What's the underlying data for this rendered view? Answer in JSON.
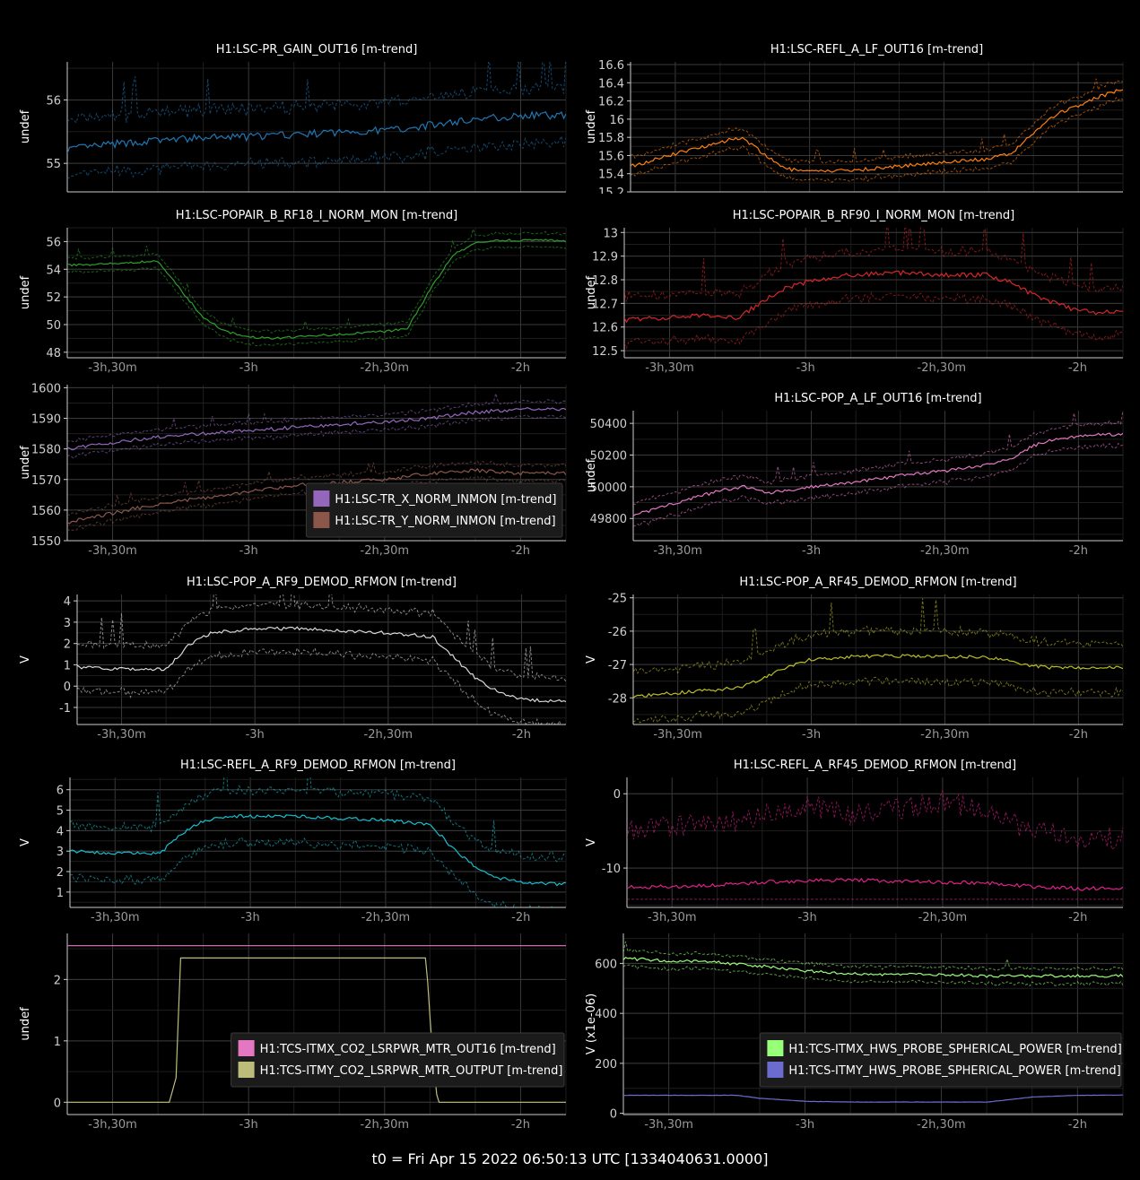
{
  "footer": "t0 = Fri Apr 15 2022 06:50:13 UTC [1334040631.0000]",
  "x_axis": {
    "xlim": [
      -13200,
      -6600
    ],
    "ticks": [
      -12600,
      -10800,
      -9000,
      -7200
    ],
    "tick_labels": [
      "-3h,30m",
      "-3h",
      "-2h,30m",
      "-2h"
    ]
  },
  "chart_data": [
    {
      "id": "pr-gain",
      "type": "line",
      "title": "H1:LSC-PR_GAIN_OUT16 [m-trend]",
      "ylabel": "undef",
      "ylim": [
        54.55,
        56.6
      ],
      "yticks": [
        55,
        56
      ],
      "color": "#1f77b4",
      "grid": true,
      "legend": null,
      "series": [
        {
          "name": "H1:LSC-PR_GAIN_OUT16 [m-trend]",
          "x": [
            -13200,
            -12600,
            -12000,
            -11400,
            -10800,
            -10200,
            -9600,
            -9000,
            -8400,
            -7800,
            -7200,
            -6600
          ],
          "mean": [
            55.22,
            55.3,
            55.36,
            55.4,
            55.42,
            55.45,
            55.49,
            55.52,
            55.6,
            55.7,
            55.75,
            55.76
          ],
          "spread": 0.44,
          "noise": 0.06
        }
      ]
    },
    {
      "id": "refl-a-lf",
      "type": "line",
      "title": "H1:LSC-REFL_A_LF_OUT16 [m-trend]",
      "ylabel": "undef",
      "ylim": [
        15.2,
        16.63
      ],
      "yticks": [
        15.2,
        15.4,
        15.6,
        15.8,
        16,
        16.2,
        16.4,
        16.6
      ],
      "color": "#ff7f0e",
      "grid": true,
      "legend": null,
      "series": [
        {
          "name": "H1:LSC-REFL_A_LF_OUT16 [m-trend]",
          "x": [
            -13200,
            -12600,
            -12000,
            -11700,
            -11400,
            -11100,
            -10800,
            -10200,
            -9600,
            -9000,
            -8400,
            -8100,
            -7800,
            -7500,
            -7200,
            -6900,
            -6600
          ],
          "mean": [
            15.48,
            15.62,
            15.75,
            15.8,
            15.6,
            15.45,
            15.42,
            15.44,
            15.48,
            15.53,
            15.56,
            15.62,
            15.85,
            16.05,
            16.15,
            16.25,
            16.33
          ],
          "spread": 0.1,
          "noise": 0.02
        }
      ]
    },
    {
      "id": "popair-rf18",
      "type": "line",
      "title": "H1:LSC-POPAIR_B_RF18_I_NORM_MON [m-trend]",
      "ylabel": "undef",
      "ylim": [
        47.6,
        57
      ],
      "yticks": [
        48,
        50,
        52,
        54,
        56
      ],
      "color": "#2ca02c",
      "grid": true,
      "legend": null,
      "series": [
        {
          "name": "H1:LSC-POPAIR_B_RF18_I_NORM_MON [m-trend]",
          "x": [
            -13200,
            -12600,
            -12000,
            -11700,
            -11400,
            -11100,
            -10800,
            -10500,
            -10200,
            -9600,
            -9000,
            -8700,
            -8400,
            -8100,
            -7800,
            -7500,
            -7200,
            -6900,
            -6600
          ],
          "mean": [
            54.3,
            54.4,
            54.6,
            52.5,
            50.5,
            49.5,
            49.1,
            49.0,
            49.1,
            49.3,
            49.5,
            49.7,
            52.5,
            55.0,
            55.9,
            56.1,
            56.1,
            56.1,
            56.0
          ],
          "spread": 0.5,
          "noise": 0.08
        }
      ]
    },
    {
      "id": "popair-rf90",
      "type": "line",
      "title": "H1:LSC-POPAIR_B_RF90_I_NORM_MON [m-trend]",
      "ylabel": "undef",
      "ylim": [
        12.47,
        13.02
      ],
      "yticks": [
        12.5,
        12.6,
        12.7,
        12.8,
        12.9,
        13
      ],
      "color": "#d62728",
      "grid": true,
      "legend": null,
      "series": [
        {
          "name": "H1:LSC-POPAIR_B_RF90_I_NORM_MON [m-trend]",
          "x": [
            -13200,
            -12600,
            -12000,
            -11700,
            -11400,
            -11100,
            -10800,
            -10200,
            -9600,
            -9000,
            -8400,
            -8100,
            -7800,
            -7500,
            -7200,
            -6900,
            -6600
          ],
          "mean": [
            12.63,
            12.64,
            12.65,
            12.64,
            12.7,
            12.76,
            12.79,
            12.82,
            12.83,
            12.82,
            12.82,
            12.79,
            12.74,
            12.7,
            12.67,
            12.66,
            12.67
          ],
          "spread": 0.1,
          "noise": 0.01
        }
      ]
    },
    {
      "id": "tr-norm",
      "type": "line",
      "title": "",
      "ylabel": "undef",
      "ylim": [
        1550,
        1601
      ],
      "yticks": [
        1550,
        1560,
        1570,
        1580,
        1590,
        1600
      ],
      "color": "#9467bd",
      "grid": true,
      "legend": "bottom-right",
      "series": [
        {
          "name": "H1:LSC-TR_X_NORM_INMON [m-trend]",
          "color": "#9467bd",
          "x": [
            -13200,
            -12600,
            -12000,
            -11400,
            -10800,
            -10200,
            -9600,
            -9000,
            -8400,
            -7800,
            -7200,
            -6600
          ],
          "mean": [
            1580,
            1582,
            1584,
            1585,
            1586,
            1587,
            1588,
            1589,
            1590,
            1592,
            1593,
            1593
          ],
          "spread": 2.5,
          "noise": 0.6
        },
        {
          "name": "H1:LSC-TR_Y_NORM_INMON [m-trend]",
          "color": "#8c564b",
          "x": [
            -13200,
            -12600,
            -12000,
            -11400,
            -10800,
            -10200,
            -9600,
            -9000,
            -8400,
            -7800,
            -7200,
            -6600
          ],
          "mean": [
            1556,
            1559,
            1562,
            1564,
            1566,
            1568,
            1569,
            1570,
            1572,
            1573,
            1572,
            1572
          ],
          "spread": 2.5,
          "noise": 0.6
        }
      ]
    },
    {
      "id": "pop-a-lf",
      "type": "line",
      "title": "H1:LSC-POP_A_LF_OUT16 [m-trend]",
      "ylabel": "undef",
      "ylim": [
        49660,
        50480
      ],
      "yticks": [
        49800,
        50000,
        50200,
        50400
      ],
      "color": "#e377c2",
      "grid": true,
      "legend": null,
      "series": [
        {
          "name": "H1:LSC-POP_A_LF_OUT16 [m-trend]",
          "x": [
            -13200,
            -12600,
            -12000,
            -11700,
            -11400,
            -10800,
            -10200,
            -9600,
            -9000,
            -8400,
            -8100,
            -7800,
            -7500,
            -7200,
            -6900,
            -6600
          ],
          "mean": [
            49820,
            49900,
            49980,
            50000,
            49960,
            50000,
            50030,
            50070,
            50100,
            50140,
            50180,
            50260,
            50300,
            50320,
            50330,
            50330
          ],
          "spread": 70,
          "noise": 10
        }
      ]
    },
    {
      "id": "pop-a-rf9",
      "type": "line",
      "title": "H1:LSC-POP_A_RF9_DEMOD_RFMON [m-trend]",
      "ylabel": "V",
      "ylim": [
        -1.8,
        4.3
      ],
      "yticks": [
        -1,
        0,
        1,
        2,
        3,
        4
      ],
      "color": "#d9d9d9",
      "grid": true,
      "legend": null,
      "series": [
        {
          "name": "H1:LSC-POP_A_RF9_DEMOD_RFMON [m-trend]",
          "x": [
            -13200,
            -12600,
            -12000,
            -11700,
            -11400,
            -11100,
            -10800,
            -10200,
            -9600,
            -9000,
            -8700,
            -8400,
            -8100,
            -7800,
            -7500,
            -7200,
            -6900,
            -6600
          ],
          "mean": [
            0.9,
            0.8,
            0.8,
            1.9,
            2.5,
            2.6,
            2.7,
            2.7,
            2.6,
            2.5,
            2.4,
            2.3,
            1.3,
            0.3,
            -0.3,
            -0.6,
            -0.7,
            -0.7
          ],
          "spread": 1.1,
          "noise": 0.08
        }
      ]
    },
    {
      "id": "pop-a-rf45",
      "type": "line",
      "title": "H1:LSC-POP_A_RF45_DEMOD_RFMON [m-trend]",
      "ylabel": "V",
      "ylim": [
        -28.8,
        -24.9
      ],
      "yticks": [
        -28,
        -27,
        -26,
        -25
      ],
      "color": "#bcbd22",
      "grid": true,
      "legend": null,
      "series": [
        {
          "name": "H1:LSC-POP_A_RF45_DEMOD_RFMON [m-trend]",
          "x": [
            -13200,
            -12600,
            -12000,
            -11700,
            -11400,
            -11100,
            -10800,
            -10200,
            -9600,
            -9000,
            -8400,
            -8100,
            -7800,
            -7500,
            -7200,
            -6900,
            -6600
          ],
          "mean": [
            -27.95,
            -27.85,
            -27.75,
            -27.65,
            -27.35,
            -27.05,
            -26.85,
            -26.75,
            -26.75,
            -26.75,
            -26.8,
            -26.9,
            -27.05,
            -27.1,
            -27.1,
            -27.1,
            -27.1
          ],
          "spread": 0.75,
          "noise": 0.05
        }
      ]
    },
    {
      "id": "refl-a-rf9",
      "type": "line",
      "title": "H1:LSC-REFL_A_RF9_DEMOD_RFMON [m-trend]",
      "ylabel": "V",
      "ylim": [
        0.25,
        6.6
      ],
      "yticks": [
        1,
        2,
        3,
        4,
        5,
        6
      ],
      "color": "#17becf",
      "grid": true,
      "legend": null,
      "series": [
        {
          "name": "H1:LSC-REFL_A_RF9_DEMOD_RFMON [m-trend]",
          "x": [
            -13200,
            -12600,
            -12000,
            -11700,
            -11400,
            -11100,
            -10800,
            -10200,
            -9600,
            -9000,
            -8700,
            -8400,
            -8100,
            -7800,
            -7500,
            -7200,
            -6900,
            -6600
          ],
          "mean": [
            3.0,
            2.9,
            2.9,
            3.9,
            4.5,
            4.7,
            4.7,
            4.7,
            4.6,
            4.5,
            4.4,
            4.3,
            3.1,
            2.2,
            1.7,
            1.5,
            1.4,
            1.4
          ],
          "spread": 1.3,
          "noise": 0.08
        }
      ]
    },
    {
      "id": "refl-a-rf45",
      "type": "line",
      "title": "H1:LSC-REFL_A_RF45_DEMOD_RFMON [m-trend]",
      "ylabel": "V",
      "ylim": [
        -15.3,
        2.2
      ],
      "yticks": [
        -10,
        0
      ],
      "color": "#e0218a",
      "grid": true,
      "legend": null,
      "series": [
        {
          "name": "H1:LSC-REFL_A_RF45_DEMOD_RFMON [m-trend]",
          "x": [
            -13200,
            -12600,
            -12000,
            -11400,
            -10800,
            -10200,
            -9600,
            -9000,
            -8400,
            -7800,
            -7200,
            -6600
          ],
          "mean": [
            -12.6,
            -12.5,
            -12.3,
            -11.9,
            -11.7,
            -11.6,
            -11.8,
            -11.9,
            -12.0,
            -12.5,
            -12.8,
            -12.7
          ],
          "lower": -14.2,
          "upper_mean": [
            -5,
            -4.5,
            -4,
            -3,
            -1.5,
            -3,
            -2,
            -1,
            -2.5,
            -5,
            -6,
            -6
          ],
          "noise": 0.25
        }
      ]
    },
    {
      "id": "tcs-co2",
      "type": "line",
      "title": "",
      "ylabel": "undef",
      "ylim": [
        -0.2,
        2.75
      ],
      "yticks": [
        0,
        1,
        2
      ],
      "color": "#e377c2",
      "grid": true,
      "legend": "center-right",
      "series": [
        {
          "name": "H1:TCS-ITMX_CO2_LSRPWR_MTR_OUT16 [m-trend]",
          "color": "#e377c2",
          "x": [
            -13200,
            -6600
          ],
          "mean": [
            2.55,
            2.55
          ],
          "spread": 0,
          "noise": 0
        },
        {
          "name": "H1:TCS-ITMY_CO2_LSRPWR_MTR_OUTPUT [m-trend]",
          "color": "#bcbd7a",
          "x": [
            -13200,
            -11850,
            -11760,
            -11700,
            -8450,
            -8380,
            -8300,
            -6600
          ],
          "mean": [
            0,
            0,
            0.4,
            2.35,
            2.35,
            1.0,
            0,
            0
          ],
          "spread": 0,
          "noise": 0
        }
      ]
    },
    {
      "id": "tcs-hws",
      "type": "line",
      "title": "",
      "ylabel": "V (x1e-06)",
      "ylim": [
        -5,
        720
      ],
      "yticks": [
        0,
        200,
        400,
        600
      ],
      "color": "#98ff78",
      "grid": true,
      "legend": "center-right",
      "series": [
        {
          "name": "H1:TCS-ITMX_HWS_PROBE_SPHERICAL_POWER [m-trend]",
          "color": "#98ff78",
          "x": [
            -13200,
            -12600,
            -12000,
            -11400,
            -10800,
            -10200,
            -9600,
            -9000,
            -8400,
            -7800,
            -7200,
            -6600
          ],
          "mean": [
            620,
            610,
            605,
            590,
            570,
            560,
            555,
            555,
            550,
            550,
            550,
            550
          ],
          "spread": 30,
          "noise": 6
        },
        {
          "name": "H1:TCS-ITMY_HWS_PROBE_SPHERICAL_POWER [m-trend]",
          "color": "#6b6bd0",
          "x": [
            -13200,
            -12600,
            -12000,
            -11700,
            -11400,
            -10800,
            -10200,
            -9600,
            -9000,
            -8400,
            -8100,
            -7800,
            -7200,
            -6600
          ],
          "mean": [
            72,
            72,
            72,
            72,
            60,
            48,
            45,
            45,
            45,
            45,
            55,
            65,
            72,
            73
          ],
          "spread": 0,
          "noise": 0.5
        }
      ]
    }
  ]
}
